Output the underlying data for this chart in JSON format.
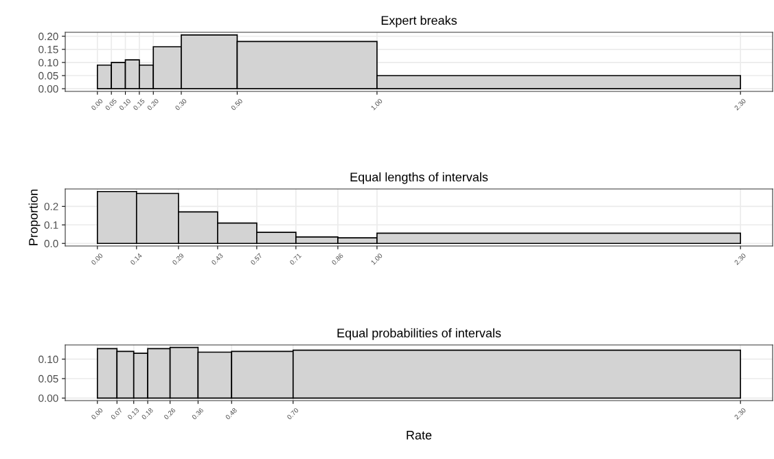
{
  "chart_data": [
    {
      "type": "histogram",
      "title": "Expert breaks",
      "bins": [
        0,
        0.05,
        0.1,
        0.15,
        0.2,
        0.3,
        0.5,
        1.0,
        2.3
      ],
      "values": [
        0.09,
        0.1,
        0.11,
        0.09,
        0.16,
        0.205,
        0.18,
        0.05
      ],
      "color": "#d3d3d3",
      "xlim": [
        -0.115,
        2.415
      ],
      "ylim": [
        -0.01025,
        0.215
      ],
      "xticks": [
        {
          "value": 0,
          "label": "0.00"
        },
        {
          "value": 0.05,
          "label": "0.05"
        },
        {
          "value": 0.1,
          "label": "0.10"
        },
        {
          "value": 0.15,
          "label": "0.15"
        },
        {
          "value": 0.2,
          "label": "0.20"
        },
        {
          "value": 0.3,
          "label": "0.30"
        },
        {
          "value": 0.5,
          "label": "0.50"
        },
        {
          "value": 1.0,
          "label": "1.00"
        },
        {
          "value": 2.3,
          "label": "2.30"
        }
      ],
      "yticks": [
        {
          "value": 0,
          "label": "0.00"
        },
        {
          "value": 0.05,
          "label": "0.05"
        },
        {
          "value": 0.1,
          "label": "0.10"
        },
        {
          "value": 0.15,
          "label": "0.15"
        },
        {
          "value": 0.2,
          "label": "0.20"
        }
      ],
      "grid": true
    },
    {
      "type": "histogram",
      "title": "Equal lengths of intervals",
      "ylabel": "Proportion",
      "bins": [
        0,
        0.14,
        0.29,
        0.43,
        0.57,
        0.71,
        0.86,
        1.0,
        2.3
      ],
      "values": [
        0.28,
        0.27,
        0.17,
        0.11,
        0.06,
        0.035,
        0.03,
        0.055
      ],
      "color": "#d3d3d3",
      "xlim": [
        -0.115,
        2.415
      ],
      "ylim": [
        -0.014,
        0.294
      ],
      "xticks": [
        {
          "value": 0,
          "label": "0.00"
        },
        0.14,
        0.29,
        0.43,
        0.57,
        0.71,
        0.86,
        {
          "value": 1.0,
          "label": "1.00"
        },
        {
          "value": 2.3,
          "label": "2.30"
        }
      ],
      "yticks": [
        {
          "value": 0,
          "label": "0.0"
        },
        0.1,
        0.2
      ],
      "grid": true
    },
    {
      "type": "histogram",
      "title": "Equal probabilities of intervals",
      "xlabel": "Rate",
      "bins": [
        0,
        0.07,
        0.13,
        0.18,
        0.26,
        0.36,
        0.48,
        0.7,
        2.3
      ],
      "values": [
        0.127,
        0.12,
        0.115,
        0.127,
        0.13,
        0.118,
        0.12,
        0.123
      ],
      "color": "#d3d3d3",
      "xlim": [
        -0.115,
        2.415
      ],
      "ylim": [
        -0.0065,
        0.1365
      ],
      "xticks": [
        {
          "value": 0,
          "label": "0.00"
        },
        0.07,
        0.13,
        0.18,
        0.26,
        0.36,
        0.48,
        {
          "value": 0.7,
          "label": "0.70"
        },
        {
          "value": 2.3,
          "label": "2.30"
        }
      ],
      "yticks": [
        {
          "value": 0,
          "label": "0.00"
        },
        {
          "value": 0.05,
          "label": "0.05"
        },
        {
          "value": 0.1,
          "label": "0.10"
        }
      ],
      "grid": true
    }
  ]
}
